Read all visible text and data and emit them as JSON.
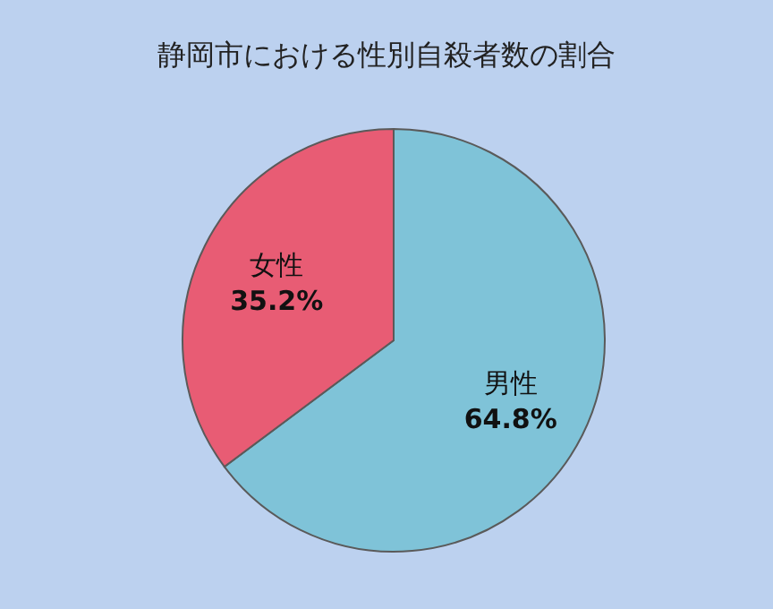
{
  "chart_data": {
    "type": "pie",
    "title": "静岡市における性別自殺者数の割合",
    "categories": [
      "男性",
      "女性"
    ],
    "values": [
      64.8,
      35.2
    ],
    "colors": [
      "#7fc3d8",
      "#e85c74"
    ],
    "value_labels": [
      "64.8%",
      "35.2%"
    ]
  }
}
